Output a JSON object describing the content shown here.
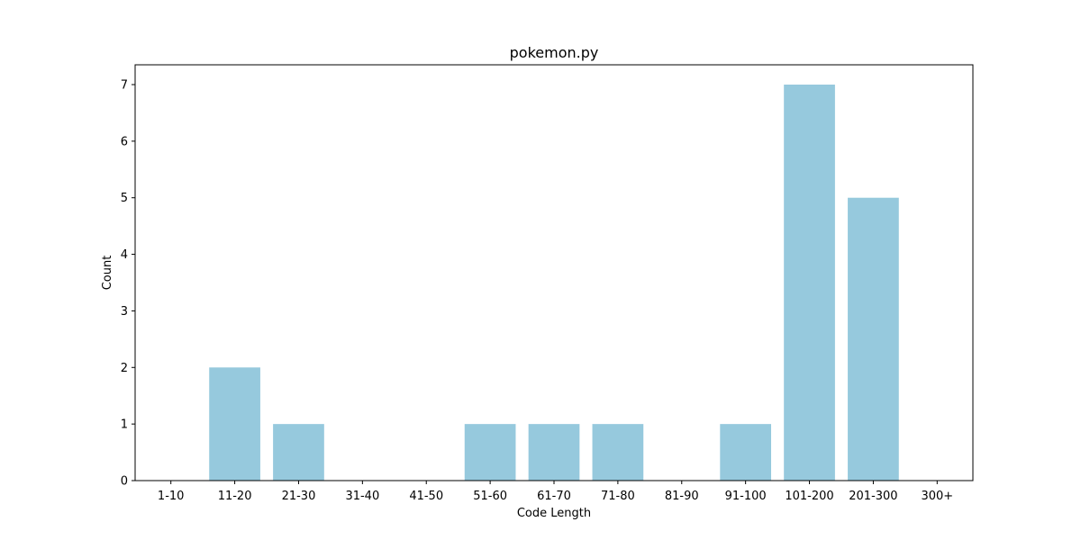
{
  "chart_data": {
    "type": "bar",
    "title": "pokemon.py",
    "xlabel": "Code Length",
    "ylabel": "Count",
    "categories": [
      "1-10",
      "11-20",
      "21-30",
      "31-40",
      "41-50",
      "51-60",
      "61-70",
      "71-80",
      "81-90",
      "91-100",
      "101-200",
      "201-300",
      "300+"
    ],
    "values": [
      0,
      2,
      1,
      0,
      0,
      1,
      1,
      1,
      0,
      1,
      7,
      5,
      0
    ],
    "ylim": [
      0,
      7.35
    ],
    "yticks": [
      0,
      1,
      2,
      3,
      4,
      5,
      6,
      7
    ],
    "grid": false,
    "legend": "none",
    "colors": {
      "bar": "#96c9dd",
      "axis": "#000000",
      "background": "#ffffff"
    }
  }
}
